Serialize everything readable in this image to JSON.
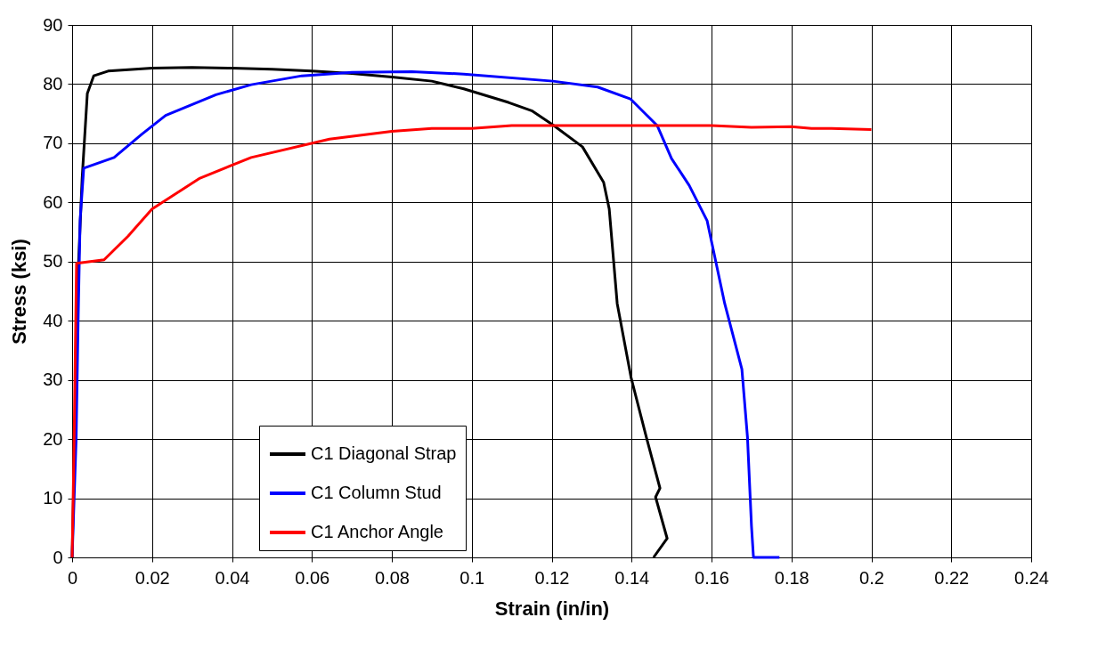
{
  "chart_data": {
    "type": "line",
    "xlabel": "Strain (in/in)",
    "ylabel": "Stress (ksi)",
    "xlim": [
      0,
      0.24
    ],
    "xticks": [
      0,
      0.02,
      0.04,
      0.06,
      0.08,
      0.1,
      0.12,
      0.14,
      0.16,
      0.18,
      0.2,
      0.22,
      0.24
    ],
    "ylim": [
      0,
      90
    ],
    "yticks": [
      0,
      10,
      20,
      30,
      40,
      50,
      60,
      70,
      80,
      90
    ],
    "grid": true,
    "legend": "bottom left",
    "marker": "none",
    "line_style": "solid",
    "series": [
      {
        "name": "C1 Diagonal Strap",
        "color": "#000000",
        "x": [
          0,
          0.0003,
          0.001,
          0.0016,
          0.0025,
          0.0038,
          0.0054,
          0.009,
          0.02,
          0.03,
          0.04,
          0.05,
          0.06,
          0.07,
          0.08,
          0.09,
          0.098,
          0.1092,
          0.115,
          0.1203,
          0.1277,
          0.133,
          0.1344,
          0.1364,
          0.1399,
          0.1437,
          0.1471,
          0.146,
          0.1489,
          0.1455
        ],
        "values": [
          0,
          9.3,
          30,
          49.7,
          64,
          78.4,
          81.4,
          82.2,
          82.7,
          82.8,
          82.7,
          82.5,
          82.2,
          81.8,
          81.2,
          80.5,
          79.2,
          76.9,
          75.5,
          73.1,
          69.4,
          63.4,
          58.9,
          42.9,
          30.3,
          20.3,
          11.7,
          10.2,
          3.2,
          0
        ]
      },
      {
        "name": "C1 Column Stud",
        "color": "#0000ff",
        "x": [
          0,
          0.001,
          0.0015,
          0.002,
          0.0029,
          0.0105,
          0.0174,
          0.0234,
          0.036,
          0.0448,
          0.0575,
          0.07,
          0.085,
          0.098,
          0.1203,
          0.1315,
          0.1397,
          0.1464,
          0.15,
          0.1544,
          0.1589,
          0.1633,
          0.1676,
          0.169,
          0.17,
          0.1705,
          0.177
        ],
        "values": [
          0,
          20,
          40,
          57,
          65.8,
          67.6,
          71.5,
          74.7,
          78.2,
          79.9,
          81.4,
          82,
          82.1,
          81.7,
          80.5,
          79.5,
          77.5,
          73,
          67.4,
          62.9,
          56.9,
          42.9,
          31.8,
          20.3,
          5.3,
          0,
          0
        ]
      },
      {
        "name": "C1 Anchor Angle",
        "color": "#ff0000",
        "x": [
          0,
          0.0005,
          0.0011,
          0.008,
          0.014,
          0.02,
          0.032,
          0.0448,
          0.0644,
          0.08,
          0.09,
          0.1,
          0.11,
          0.12,
          0.15,
          0.16,
          0.17,
          0.18,
          0.185,
          0.19,
          0.2
        ],
        "values": [
          0,
          20,
          49.7,
          50.3,
          54.3,
          58.9,
          64.1,
          67.6,
          70.7,
          72,
          72.5,
          72.5,
          73,
          73,
          73,
          73,
          72.7,
          72.8,
          72.5,
          72.5,
          72.3
        ]
      }
    ]
  }
}
